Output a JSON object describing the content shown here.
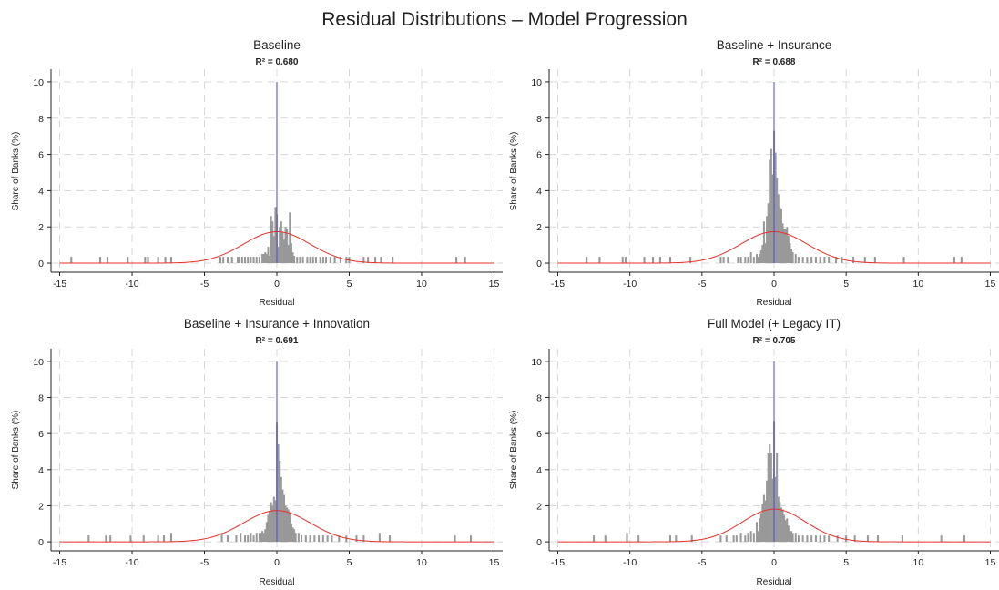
{
  "figure": {
    "title": "Residual Distributions – Model Progression"
  },
  "chart_data": [
    {
      "type": "histogram",
      "title": "Baseline",
      "subtitle": "R² = 0.680",
      "xlabel": "Residual",
      "ylabel": "Share of Banks (%)",
      "xlim": [
        -15.6,
        15.6
      ],
      "ylim": [
        -0.5,
        10.7
      ],
      "xticks": [
        -15,
        -10,
        -5,
        0,
        5,
        10,
        15
      ],
      "yticks": [
        0,
        2,
        4,
        6,
        8,
        10
      ],
      "grid": true,
      "reference_line_x": 0,
      "bin_width": 0.13,
      "normal_curve": {
        "mean": 0.0,
        "sd": 2.3
      },
      "bins": [
        [
          -14.2,
          0.35
        ],
        [
          -12.2,
          0.35
        ],
        [
          -11.7,
          0.35
        ],
        [
          -10.3,
          0.35
        ],
        [
          -9.1,
          0.35
        ],
        [
          -8.9,
          0.35
        ],
        [
          -8.2,
          0.35
        ],
        [
          -7.7,
          0.35
        ],
        [
          -7.3,
          0.35
        ],
        [
          -3.9,
          0.35
        ],
        [
          -3.7,
          0.35
        ],
        [
          -3.4,
          0.35
        ],
        [
          -3.1,
          0.35
        ],
        [
          -2.7,
          0.35
        ],
        [
          -2.6,
          0.35
        ],
        [
          -2.4,
          0.35
        ],
        [
          -2.2,
          0.35
        ],
        [
          -2.0,
          0.35
        ],
        [
          -1.8,
          0.35
        ],
        [
          -1.6,
          0.35
        ],
        [
          -1.4,
          0.35
        ],
        [
          -1.2,
          0.35
        ],
        [
          -1.0,
          0.5
        ],
        [
          -0.9,
          0.5
        ],
        [
          -0.8,
          0.6
        ],
        [
          -0.7,
          0.5
        ],
        [
          -0.6,
          0.9
        ],
        [
          -0.5,
          0.4
        ],
        [
          -0.4,
          2.6
        ],
        [
          -0.3,
          2.3
        ],
        [
          -0.2,
          1.5
        ],
        [
          -0.1,
          3.1
        ],
        [
          0.0,
          2.7
        ],
        [
          0.1,
          0.9
        ],
        [
          0.2,
          2.0
        ],
        [
          0.3,
          2.3
        ],
        [
          0.4,
          1.7
        ],
        [
          0.5,
          1.3
        ],
        [
          0.6,
          2.0
        ],
        [
          0.7,
          1.9
        ],
        [
          0.8,
          1.0
        ],
        [
          0.9,
          2.8
        ],
        [
          1.0,
          1.1
        ],
        [
          1.1,
          0.6
        ],
        [
          1.2,
          0.4
        ],
        [
          1.4,
          0.35
        ],
        [
          1.6,
          0.35
        ],
        [
          1.8,
          0.35
        ],
        [
          2.1,
          0.35
        ],
        [
          2.3,
          0.35
        ],
        [
          2.5,
          0.35
        ],
        [
          2.7,
          0.35
        ],
        [
          3.0,
          0.35
        ],
        [
          3.2,
          0.35
        ],
        [
          3.4,
          0.35
        ],
        [
          3.7,
          0.35
        ],
        [
          4.0,
          0.35
        ],
        [
          4.4,
          0.35
        ],
        [
          4.8,
          0.35
        ],
        [
          5.0,
          0.35
        ],
        [
          6.0,
          0.35
        ],
        [
          6.3,
          0.35
        ],
        [
          6.8,
          0.35
        ],
        [
          7.2,
          0.35
        ],
        [
          8.0,
          0.35
        ],
        [
          12.4,
          0.35
        ],
        [
          13.0,
          0.35
        ]
      ]
    },
    {
      "type": "histogram",
      "title": "Baseline + Insurance",
      "subtitle": "R² = 0.688",
      "xlabel": "Residual",
      "ylabel": "Share of Banks (%)",
      "xlim": [
        -15.6,
        15.6
      ],
      "ylim": [
        -0.5,
        10.7
      ],
      "xticks": [
        -15,
        -10,
        -5,
        0,
        5,
        10,
        15
      ],
      "yticks": [
        0,
        2,
        4,
        6,
        8,
        10
      ],
      "grid": true,
      "reference_line_x": 0,
      "bin_width": 0.13,
      "normal_curve": {
        "mean": 0.0,
        "sd": 2.3
      },
      "bins": [
        [
          -13.0,
          0.35
        ],
        [
          -12.1,
          0.35
        ],
        [
          -10.5,
          0.35
        ],
        [
          -10.3,
          0.35
        ],
        [
          -9.0,
          0.35
        ],
        [
          -8.4,
          0.35
        ],
        [
          -7.9,
          0.35
        ],
        [
          -7.2,
          0.35
        ],
        [
          -5.8,
          0.35
        ],
        [
          -3.7,
          0.35
        ],
        [
          -3.5,
          0.35
        ],
        [
          -3.2,
          0.35
        ],
        [
          -2.5,
          0.35
        ],
        [
          -2.3,
          0.35
        ],
        [
          -2.0,
          0.35
        ],
        [
          -1.8,
          0.35
        ],
        [
          -1.6,
          0.6
        ],
        [
          -1.4,
          0.35
        ],
        [
          -1.2,
          0.5
        ],
        [
          -1.1,
          0.35
        ],
        [
          -1.0,
          0.5
        ],
        [
          -0.9,
          0.7
        ],
        [
          -0.8,
          1.0
        ],
        [
          -0.7,
          2.3
        ],
        [
          -0.6,
          1.1
        ],
        [
          -0.5,
          2.6
        ],
        [
          -0.4,
          3.3
        ],
        [
          -0.3,
          5.7
        ],
        [
          -0.2,
          6.3
        ],
        [
          -0.1,
          4.9
        ],
        [
          0.0,
          7.3
        ],
        [
          0.1,
          6.1
        ],
        [
          0.2,
          4.7
        ],
        [
          0.3,
          3.8
        ],
        [
          0.4,
          3.1
        ],
        [
          0.5,
          3.0
        ],
        [
          0.6,
          2.2
        ],
        [
          0.7,
          1.9
        ],
        [
          0.8,
          1.9
        ],
        [
          0.9,
          2.0
        ],
        [
          1.0,
          1.5
        ],
        [
          1.1,
          1.1
        ],
        [
          1.2,
          0.8
        ],
        [
          1.3,
          0.6
        ],
        [
          1.5,
          0.5
        ],
        [
          1.7,
          0.35
        ],
        [
          2.0,
          0.35
        ],
        [
          2.3,
          0.35
        ],
        [
          2.6,
          0.35
        ],
        [
          2.9,
          0.35
        ],
        [
          3.2,
          0.35
        ],
        [
          3.5,
          0.35
        ],
        [
          3.8,
          0.35
        ],
        [
          4.3,
          0.35
        ],
        [
          4.7,
          0.35
        ],
        [
          5.5,
          0.35
        ],
        [
          6.3,
          0.35
        ],
        [
          7.0,
          0.35
        ],
        [
          9.0,
          0.35
        ],
        [
          12.5,
          0.35
        ],
        [
          13.0,
          0.35
        ]
      ]
    },
    {
      "type": "histogram",
      "title": "Baseline + Insurance + Innovation",
      "subtitle": "R² = 0.691",
      "xlabel": "Residual",
      "ylabel": "Share of Banks (%)",
      "xlim": [
        -15.6,
        15.6
      ],
      "ylim": [
        -0.5,
        10.7
      ],
      "xticks": [
        -15,
        -10,
        -5,
        0,
        5,
        10,
        15
      ],
      "yticks": [
        0,
        2,
        4,
        6,
        8,
        10
      ],
      "grid": true,
      "reference_line_x": 0,
      "bin_width": 0.13,
      "normal_curve": {
        "mean": 0.0,
        "sd": 2.3
      },
      "bins": [
        [
          -13.0,
          0.35
        ],
        [
          -11.8,
          0.35
        ],
        [
          -11.5,
          0.35
        ],
        [
          -10.1,
          0.35
        ],
        [
          -9.2,
          0.35
        ],
        [
          -8.2,
          0.35
        ],
        [
          -7.8,
          0.35
        ],
        [
          -7.3,
          0.5
        ],
        [
          -3.8,
          0.5
        ],
        [
          -3.4,
          0.35
        ],
        [
          -2.8,
          0.35
        ],
        [
          -2.5,
          0.5
        ],
        [
          -2.2,
          0.35
        ],
        [
          -2.0,
          0.35
        ],
        [
          -1.8,
          0.5
        ],
        [
          -1.6,
          0.35
        ],
        [
          -1.4,
          0.5
        ],
        [
          -1.2,
          0.5
        ],
        [
          -1.1,
          0.5
        ],
        [
          -1.0,
          0.6
        ],
        [
          -0.9,
          0.5
        ],
        [
          -0.8,
          0.7
        ],
        [
          -0.7,
          1.1
        ],
        [
          -0.6,
          1.5
        ],
        [
          -0.5,
          1.7
        ],
        [
          -0.4,
          2.2
        ],
        [
          -0.3,
          2.0
        ],
        [
          -0.2,
          2.5
        ],
        [
          -0.1,
          2.3
        ],
        [
          0.0,
          6.6
        ],
        [
          0.1,
          5.4
        ],
        [
          0.2,
          4.5
        ],
        [
          0.3,
          3.6
        ],
        [
          0.4,
          2.9
        ],
        [
          0.5,
          2.6
        ],
        [
          0.6,
          2.0
        ],
        [
          0.7,
          1.9
        ],
        [
          0.8,
          1.8
        ],
        [
          0.9,
          1.6
        ],
        [
          1.0,
          1.0
        ],
        [
          1.1,
          0.8
        ],
        [
          1.2,
          0.7
        ],
        [
          1.3,
          0.5
        ],
        [
          1.5,
          0.5
        ],
        [
          1.7,
          0.35
        ],
        [
          2.0,
          0.35
        ],
        [
          2.3,
          0.35
        ],
        [
          2.6,
          0.35
        ],
        [
          2.9,
          0.35
        ],
        [
          3.2,
          0.35
        ],
        [
          3.5,
          0.35
        ],
        [
          3.8,
          0.35
        ],
        [
          4.3,
          0.35
        ],
        [
          4.8,
          0.35
        ],
        [
          5.5,
          0.35
        ],
        [
          6.0,
          0.35
        ],
        [
          7.1,
          0.5
        ],
        [
          7.8,
          0.35
        ],
        [
          12.3,
          0.35
        ],
        [
          13.4,
          0.35
        ]
      ]
    },
    {
      "type": "histogram",
      "title": "Full Model (+ Legacy IT)",
      "subtitle": "R² = 0.705",
      "xlabel": "Residual",
      "ylabel": "Share of Banks (%)",
      "xlim": [
        -15.6,
        15.6
      ],
      "ylim": [
        -0.5,
        10.7
      ],
      "xticks": [
        -15,
        -10,
        -5,
        0,
        5,
        10,
        15
      ],
      "yticks": [
        0,
        2,
        4,
        6,
        8,
        10
      ],
      "grid": true,
      "reference_line_x": 0,
      "bin_width": 0.13,
      "normal_curve": {
        "mean": 0.0,
        "sd": 2.2
      },
      "bins": [
        [
          -12.5,
          0.35
        ],
        [
          -11.7,
          0.35
        ],
        [
          -10.2,
          0.5
        ],
        [
          -9.4,
          0.35
        ],
        [
          -7.2,
          0.35
        ],
        [
          -6.8,
          0.35
        ],
        [
          -5.7,
          0.35
        ],
        [
          -3.7,
          0.35
        ],
        [
          -3.3,
          0.35
        ],
        [
          -2.8,
          0.35
        ],
        [
          -2.6,
          0.35
        ],
        [
          -2.3,
          0.5
        ],
        [
          -2.0,
          0.35
        ],
        [
          -1.8,
          0.5
        ],
        [
          -1.6,
          0.6
        ],
        [
          -1.4,
          0.5
        ],
        [
          -1.2,
          1.1
        ],
        [
          -1.1,
          0.6
        ],
        [
          -1.0,
          1.3
        ],
        [
          -0.9,
          1.6
        ],
        [
          -0.8,
          2.1
        ],
        [
          -0.7,
          2.6
        ],
        [
          -0.6,
          2.3
        ],
        [
          -0.5,
          3.4
        ],
        [
          -0.4,
          4.9
        ],
        [
          -0.3,
          5.4
        ],
        [
          -0.2,
          4.9
        ],
        [
          -0.1,
          3.5
        ],
        [
          0.0,
          6.7
        ],
        [
          0.1,
          3.6
        ],
        [
          0.2,
          4.9
        ],
        [
          0.3,
          2.5
        ],
        [
          0.4,
          2.2
        ],
        [
          0.5,
          1.9
        ],
        [
          0.6,
          1.8
        ],
        [
          0.7,
          1.5
        ],
        [
          0.8,
          1.2
        ],
        [
          0.9,
          1.3
        ],
        [
          1.0,
          0.9
        ],
        [
          1.1,
          0.6
        ],
        [
          1.2,
          0.6
        ],
        [
          1.3,
          0.5
        ],
        [
          1.5,
          0.5
        ],
        [
          1.7,
          0.35
        ],
        [
          2.0,
          0.35
        ],
        [
          2.3,
          0.35
        ],
        [
          2.6,
          0.35
        ],
        [
          2.9,
          0.35
        ],
        [
          3.2,
          0.35
        ],
        [
          3.5,
          0.35
        ],
        [
          3.8,
          0.35
        ],
        [
          4.4,
          0.35
        ],
        [
          5.0,
          0.35
        ],
        [
          5.6,
          0.35
        ],
        [
          6.5,
          0.35
        ],
        [
          7.2,
          0.35
        ],
        [
          8.9,
          0.35
        ],
        [
          11.6,
          0.35
        ],
        [
          13.2,
          0.35
        ]
      ]
    }
  ],
  "colors": {
    "bars": "#999999",
    "normal_curve": "#e8302a",
    "zero_line": "#4a4ad8",
    "grid": "#d8d8d8",
    "axis": "#222222"
  }
}
